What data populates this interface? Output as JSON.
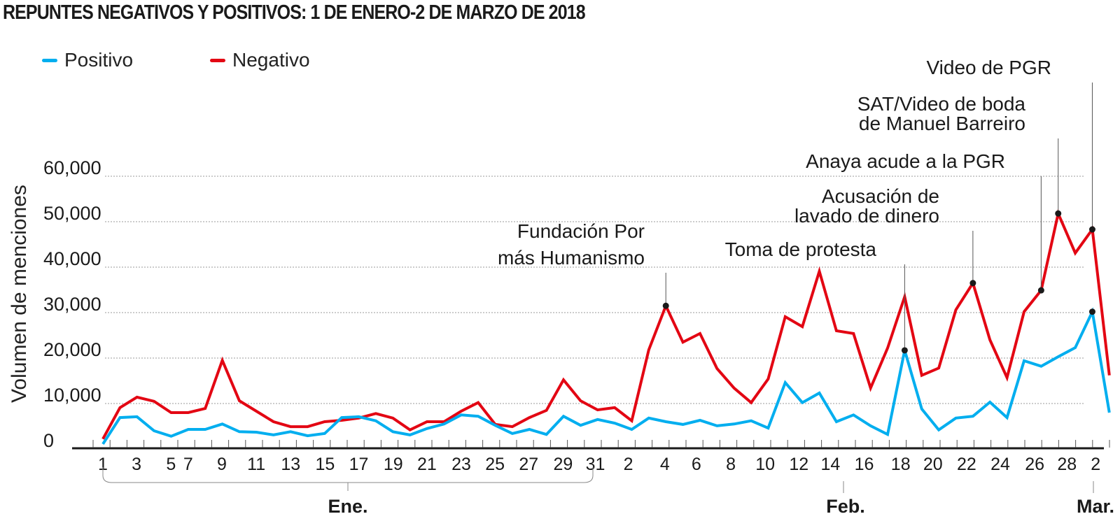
{
  "title": "REPUNTES NEGATIVOS Y POSITIVOS: 1 DE ENERO-2 DE MARZO DE 2018",
  "legend": [
    {
      "label": "Positivo",
      "color": "#00aeef"
    },
    {
      "label": "Negativo",
      "color": "#e30613"
    }
  ],
  "chart_data": {
    "type": "line",
    "title": "REPUNTES NEGATIVOS Y POSITIVOS: 1 DE ENERO-2 DE MARZO DE 2018",
    "xlabel": "",
    "ylabel": "Volumen de menciones",
    "ylim": [
      0,
      60000
    ],
    "yticks": [
      0,
      10000,
      20000,
      30000,
      40000,
      50000,
      60000
    ],
    "ytick_labels": [
      "0",
      "10,000",
      "20,000",
      "30,000",
      "40,000",
      "50,000",
      "60,000"
    ],
    "grid": true,
    "legend_position": "top-left",
    "x": [
      "Jan 1",
      "Jan 2",
      "Jan 3",
      "Jan 4",
      "Jan 5",
      "Jan 6",
      "Jan 7",
      "Jan 8",
      "Jan 9",
      "Jan 10",
      "Jan 11",
      "Jan 12",
      "Jan 13",
      "Jan 14",
      "Jan 15",
      "Jan 16",
      "Jan 17",
      "Jan 18",
      "Jan 19",
      "Jan 20",
      "Jan 21",
      "Jan 22",
      "Jan 23",
      "Jan 24",
      "Jan 25",
      "Jan 26",
      "Jan 27",
      "Jan 28",
      "Jan 29",
      "Jan 30",
      "Jan 31",
      "Feb 1",
      "Feb 2",
      "Feb 3",
      "Feb 4",
      "Feb 5",
      "Feb 6",
      "Feb 7",
      "Feb 8",
      "Feb 9",
      "Feb 10",
      "Feb 11",
      "Feb 12",
      "Feb 13",
      "Feb 14",
      "Feb 15",
      "Feb 16",
      "Feb 17",
      "Feb 18",
      "Feb 19",
      "Feb 20",
      "Feb 21",
      "Feb 22",
      "Feb 23",
      "Feb 24",
      "Feb 25",
      "Feb 26",
      "Feb 27",
      "Feb 28",
      "Mar 1"
    ],
    "series": [
      {
        "name": "Positivo",
        "color": "#00aeef",
        "values": [
          1100,
          6900,
          7100,
          4000,
          2800,
          4300,
          4300,
          5500,
          3800,
          3700,
          3100,
          3800,
          2900,
          3400,
          6900,
          7100,
          6200,
          3800,
          3100,
          4500,
          5500,
          7500,
          7200,
          5200,
          3400,
          4300,
          3200,
          7200,
          5200,
          6500,
          5700,
          4300,
          6800,
          6000,
          5400,
          6300,
          5100,
          5500,
          6200,
          4600,
          14600,
          10200,
          12300,
          6000,
          7500,
          5100,
          3200,
          21700,
          8800,
          4200,
          6800,
          7200,
          10300,
          6900,
          19400,
          18200,
          20300,
          22300,
          30200,
          8000
        ]
      },
      {
        "name": "Negativo",
        "color": "#e30613",
        "values": [
          2200,
          9100,
          11400,
          10500,
          8000,
          8000,
          8900,
          19500,
          10600,
          8300,
          6000,
          4900,
          4900,
          6000,
          6300,
          6800,
          7800,
          6800,
          4200,
          6000,
          6000,
          8300,
          10200,
          5400,
          4900,
          6900,
          8500,
          15200,
          10600,
          8600,
          9100,
          6200,
          21800,
          31500,
          23500,
          25400,
          17700,
          13400,
          10200,
          15400,
          29100,
          26900,
          39100,
          26000,
          25400,
          13400,
          22200,
          33500,
          16200,
          17800,
          30600,
          36500,
          24000,
          15700,
          30200,
          34900,
          51800,
          43100,
          48300,
          16200
        ]
      }
    ],
    "xtick_labels": [
      "1",
      "3",
      "5",
      "7",
      "9",
      "11",
      "13",
      "15",
      "17",
      "19",
      "21",
      "23",
      "25",
      "27",
      "29",
      "31",
      "2",
      "4",
      "6",
      "8",
      "10",
      "12",
      "14",
      "16",
      "18",
      "20",
      "22",
      "24",
      "26",
      "28",
      "2"
    ],
    "month_labels": [
      "Ene.",
      "Feb.",
      "Mar."
    ],
    "annotations": [
      {
        "text": [
          "Fundación Por",
          "más Humanismo"
        ],
        "series": "Negativo",
        "x": "Feb 3",
        "value": 31500
      },
      {
        "text": [
          "Toma de protesta"
        ],
        "series": "Positivo",
        "x": "Feb 17",
        "value": 21700
      },
      {
        "text": [
          "Acusación de",
          "lavado de dinero"
        ],
        "series": "Negativo",
        "x": "Feb 21",
        "value": 36500
      },
      {
        "text": [
          "Anaya acude a la PGR"
        ],
        "series": "Negativo",
        "x": "Feb 25",
        "value": 34900
      },
      {
        "text": [
          "SAT/Video de boda",
          "de Manuel Barreiro"
        ],
        "series": "Negativo",
        "x": "Feb 26",
        "value": 51800
      },
      {
        "text": [
          "Video de PGR"
        ],
        "series": "Negativo",
        "x": "Feb 28",
        "value": 48300
      },
      {
        "text": [],
        "series": "Positivo",
        "x": "Feb 28",
        "value": 30200
      }
    ]
  }
}
